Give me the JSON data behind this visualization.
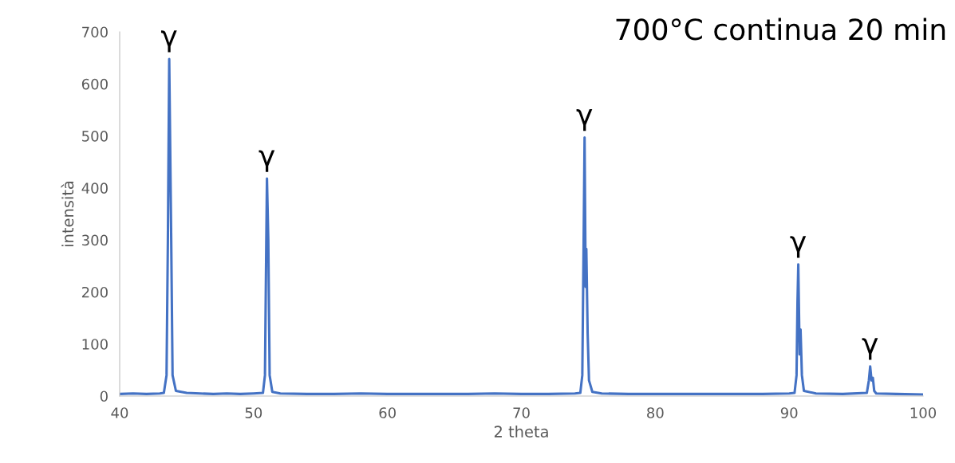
{
  "chart_data": {
    "type": "line",
    "title": "700°C continua 20 min",
    "xlabel": "2 theta",
    "ylabel": "intensità",
    "series": [
      {
        "color": "#4472c4",
        "x": [
          40,
          41,
          42,
          43,
          43.3,
          43.5,
          43.6,
          43.7,
          43.85,
          43.95,
          44.2,
          45,
          46,
          47,
          48,
          49,
          50,
          50.7,
          50.85,
          50.95,
          51.0,
          51.1,
          51.2,
          51.4,
          52,
          54,
          56,
          58,
          60,
          62,
          64,
          66,
          68,
          70,
          72,
          74,
          74.4,
          74.55,
          74.65,
          74.72,
          74.8,
          74.85,
          74.95,
          75.05,
          75.3,
          76,
          78,
          80,
          82,
          84,
          86,
          88,
          90,
          90.4,
          90.55,
          90.62,
          90.68,
          90.78,
          90.85,
          90.95,
          91.1,
          92,
          94,
          95.8,
          95.95,
          96.05,
          96.15,
          96.25,
          96.35,
          96.5,
          98,
          100
        ],
        "values": [
          4,
          5,
          4,
          5,
          6,
          40,
          300,
          648,
          300,
          40,
          10,
          6,
          5,
          4,
          5,
          4,
          5,
          6,
          40,
          300,
          418,
          300,
          40,
          8,
          5,
          4,
          4,
          5,
          4,
          4,
          4,
          4,
          5,
          4,
          4,
          5,
          6,
          40,
          300,
          497,
          210,
          283,
          120,
          30,
          8,
          5,
          4,
          4,
          4,
          4,
          4,
          4,
          5,
          6,
          40,
          180,
          253,
          80,
          128,
          40,
          10,
          5,
          4,
          6,
          30,
          57,
          30,
          35,
          10,
          5,
          4,
          3
        ]
      }
    ],
    "xlim": [
      40,
      100
    ],
    "xticks": [
      40,
      50,
      60,
      70,
      80,
      90,
      100
    ],
    "ylim": [
      0,
      700
    ],
    "yticks": [
      0,
      100,
      200,
      300,
      400,
      500,
      600,
      700
    ],
    "grid": false,
    "legend": false,
    "marker": "none",
    "line_style": "solid",
    "annotations": [
      {
        "text": "γ",
        "x": 43.7,
        "y": 648
      },
      {
        "text": "γ",
        "x": 51.0,
        "y": 418
      },
      {
        "text": "γ",
        "x": 74.72,
        "y": 497
      },
      {
        "text": "γ",
        "x": 90.68,
        "y": 253
      },
      {
        "text": "γ",
        "x": 96.05,
        "y": 57
      }
    ]
  }
}
